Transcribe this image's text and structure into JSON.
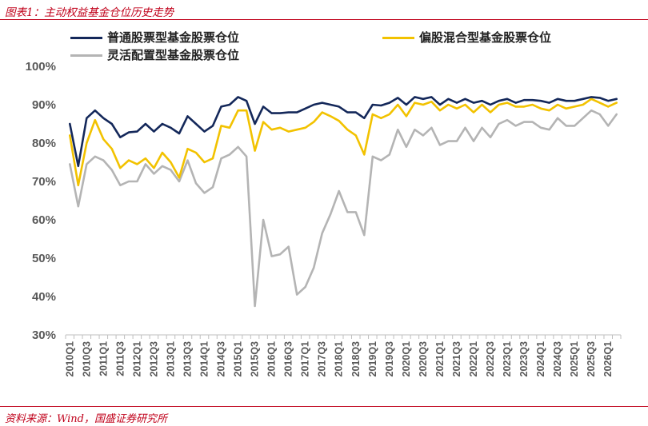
{
  "header": {
    "title": "图表1：主动权益基金仓位历史走势"
  },
  "footer": {
    "source": "资料来源：Wind，国盛证券研究所"
  },
  "colors": {
    "accent": "#c0001a",
    "s1": "#14285a",
    "s2": "#f2c200",
    "s3": "#b4b4b4"
  },
  "chart_data": {
    "type": "line",
    "title": "",
    "xlabel": "",
    "ylabel": "",
    "ylim": [
      30,
      100
    ],
    "yticks": [
      "30%",
      "40%",
      "50%",
      "60%",
      "70%",
      "80%",
      "90%",
      "100%"
    ],
    "grid": false,
    "legend_position": "top",
    "x": [
      "2010Q1",
      "2010Q2",
      "2010Q3",
      "2010Q4",
      "2011Q1",
      "2011Q2",
      "2011Q3",
      "2011Q4",
      "2012Q1",
      "2012Q2",
      "2012Q3",
      "2012Q4",
      "2013Q1",
      "2013Q2",
      "2013Q3",
      "2013Q4",
      "2014Q1",
      "2014Q2",
      "2014Q3",
      "2014Q4",
      "2015Q1",
      "2015Q2",
      "2015Q3",
      "2015Q4",
      "2016Q1",
      "2016Q2",
      "2016Q3",
      "2016Q4",
      "2017Q1",
      "2017Q2",
      "2017Q3",
      "2017Q4",
      "2018Q1",
      "2018Q2",
      "2018Q3",
      "2018Q4",
      "2019Q1",
      "2019Q2",
      "2019Q3",
      "2019Q4",
      "2020Q1",
      "2020Q2",
      "2020Q3",
      "2020Q4",
      "2021Q1",
      "2021Q2",
      "2021Q3",
      "2021Q4",
      "2022Q1",
      "2022Q2",
      "2022Q3",
      "2022Q4",
      "2023Q1",
      "2023Q2",
      "2023Q3",
      "2023Q4",
      "2024Q1",
      "2024Q2",
      "2024Q3",
      "2024Q4",
      "2025Q1",
      "2025Q2",
      "2025Q3",
      "2025Q4",
      "2026Q1",
      "2026Q2"
    ],
    "xtick_labels": [
      "2010Q1",
      "2010Q3",
      "2011Q1",
      "2011Q3",
      "2012Q1",
      "2012Q3",
      "2013Q1",
      "2013Q3",
      "2014Q1",
      "2014Q3",
      "2015Q1",
      "2015Q3",
      "2016Q1",
      "2016Q3",
      "2017Q1",
      "2017Q3",
      "2018Q1",
      "2018Q3",
      "2019Q1",
      "2019Q3",
      "2020Q1",
      "2020Q3",
      "2021Q1",
      "2021Q3",
      "2022Q1",
      "2022Q3",
      "2023Q1",
      "2023Q3",
      "2024Q1",
      "2024Q3",
      "2025Q1",
      "2025Q3",
      "2026Q1"
    ],
    "series": [
      {
        "name": "普通股票型基金股票仓位",
        "color": "#14285a",
        "values": [
          85.0,
          74.0,
          86.5,
          88.5,
          86.5,
          85.0,
          81.5,
          82.8,
          83.0,
          85.0,
          83.0,
          85.0,
          84.0,
          82.5,
          87.0,
          85.0,
          83.0,
          84.5,
          89.5,
          90.0,
          92.0,
          91.0,
          85.0,
          89.5,
          87.8,
          87.8,
          88.0,
          88.0,
          89.0,
          90.0,
          90.5,
          90.0,
          89.5,
          88.0,
          88.0,
          86.5,
          90.0,
          89.8,
          90.5,
          91.8,
          90.0,
          92.0,
          91.5,
          92.0,
          90.0,
          91.5,
          90.5,
          91.5,
          90.5,
          91.0,
          90.0,
          91.0,
          91.5,
          90.5,
          91.2,
          91.2,
          91.0,
          90.5,
          91.5,
          91.0,
          91.0,
          91.5,
          92.0,
          91.8,
          91.0,
          91.5
        ]
      },
      {
        "name": "偏股混合型基金股票仓位",
        "color": "#f2c200",
        "values": [
          82.0,
          69.0,
          80.0,
          86.0,
          81.0,
          78.5,
          73.5,
          75.5,
          74.5,
          76.0,
          73.5,
          77.5,
          75.0,
          71.0,
          78.5,
          77.5,
          75.0,
          76.0,
          84.5,
          84.0,
          88.5,
          88.5,
          78.0,
          85.5,
          83.5,
          84.0,
          83.0,
          83.5,
          84.0,
          85.5,
          88.0,
          87.0,
          85.8,
          83.5,
          82.0,
          77.0,
          87.5,
          86.5,
          87.5,
          90.0,
          87.0,
          90.5,
          90.0,
          90.8,
          88.5,
          90.0,
          89.0,
          90.0,
          88.0,
          90.0,
          88.0,
          90.0,
          90.5,
          89.5,
          89.5,
          90.0,
          89.0,
          88.5,
          90.0,
          89.0,
          89.5,
          90.0,
          91.5,
          90.5,
          89.5,
          90.5
        ]
      },
      {
        "name": "灵活配置型基金股票仓位",
        "color": "#b4b4b4",
        "values": [
          74.5,
          63.5,
          74.5,
          76.5,
          75.5,
          73.0,
          69.0,
          70.0,
          70.0,
          74.5,
          72.0,
          74.0,
          73.0,
          70.0,
          75.5,
          69.5,
          67.0,
          68.5,
          76.0,
          77.0,
          79.0,
          76.5,
          37.5,
          60.0,
          50.5,
          51.0,
          53.0,
          40.5,
          42.5,
          47.5,
          56.5,
          61.5,
          67.5,
          62.0,
          62.0,
          56.0,
          76.5,
          75.5,
          77.0,
          83.5,
          79.0,
          83.5,
          82.0,
          84.0,
          79.5,
          80.5,
          80.5,
          84.0,
          80.5,
          84.0,
          81.5,
          85.0,
          86.0,
          84.5,
          85.5,
          85.5,
          84.0,
          83.5,
          86.5,
          84.5,
          84.5,
          86.5,
          88.5,
          87.5,
          84.5,
          87.5
        ]
      }
    ]
  }
}
